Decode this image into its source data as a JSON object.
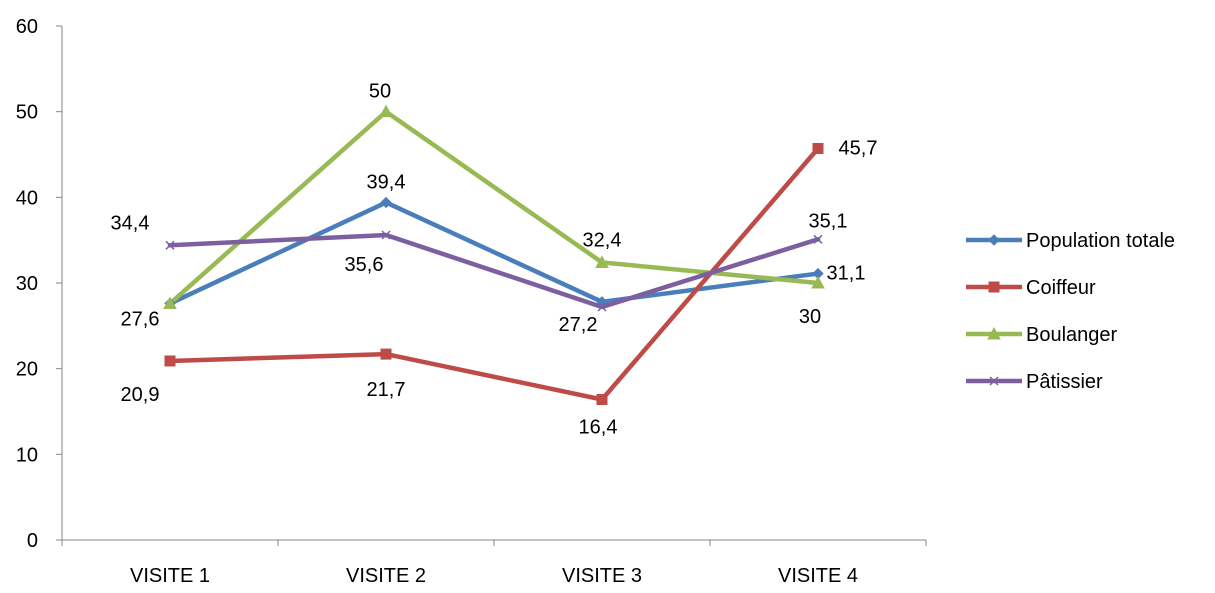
{
  "chart_data": {
    "type": "line",
    "title": "",
    "xlabel": "",
    "ylabel": "",
    "categories": [
      "VISITE 1",
      "VISITE 2",
      "VISITE 3",
      "VISITE 4"
    ],
    "ylim": [
      0,
      60
    ],
    "yticks": [
      "0",
      "10",
      "20",
      "30",
      "40",
      "50",
      "60"
    ],
    "grid": false,
    "legend_position": "right",
    "series": [
      {
        "name": "Population totale",
        "color": "#4a7ebb",
        "marker": "diamond",
        "values": [
          27.6,
          39.4,
          27.8,
          31.1
        ],
        "labels": [
          "27,6",
          "39,4",
          null,
          "31,1"
        ]
      },
      {
        "name": "Coiffeur",
        "color": "#be4b48",
        "marker": "square",
        "values": [
          20.9,
          21.7,
          16.4,
          45.7
        ],
        "labels": [
          "20,9",
          "21,7",
          "16,4",
          "45,7"
        ]
      },
      {
        "name": "Boulanger",
        "color": "#98b954",
        "marker": "triangle",
        "values": [
          27.6,
          50,
          32.4,
          30
        ],
        "labels": [
          null,
          "50",
          "32,4",
          "30"
        ]
      },
      {
        "name": "Pâtissier",
        "color": "#7d5fa0",
        "marker": "x",
        "values": [
          34.4,
          35.6,
          27.2,
          35.1
        ],
        "labels": [
          "34,4",
          "35,6",
          "27,2",
          "35,1"
        ]
      }
    ]
  }
}
